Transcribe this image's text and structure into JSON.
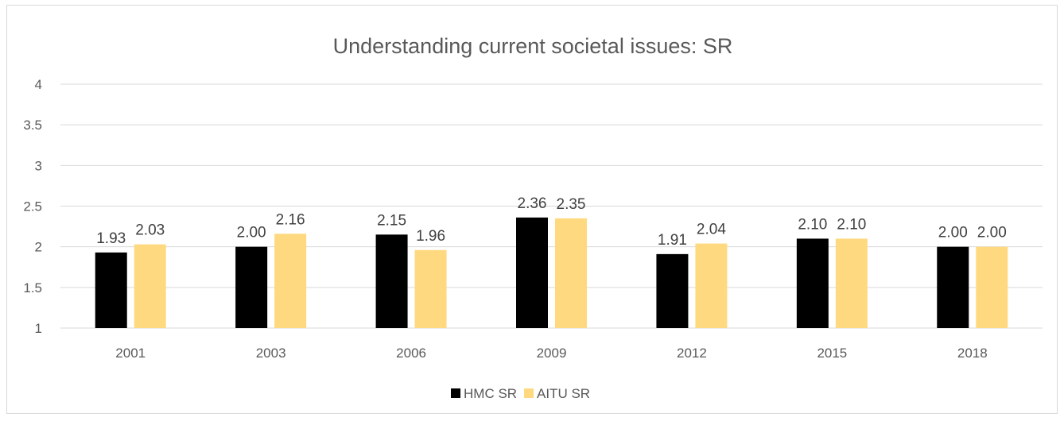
{
  "chart_data": {
    "type": "bar",
    "title": "Understanding current societal issues: SR",
    "xlabel": "",
    "ylabel": "",
    "categories": [
      "2001",
      "2003",
      "2006",
      "2009",
      "2012",
      "2015",
      "2018"
    ],
    "series": [
      {
        "name": "HMC SR",
        "color": "#000000",
        "values": [
          1.93,
          2.0,
          2.15,
          2.36,
          1.91,
          2.1,
          2.0
        ],
        "labels": [
          "1.93",
          "2.00",
          "2.15",
          "2.36",
          "1.91",
          "2.10",
          "2.00"
        ]
      },
      {
        "name": "AITU SR",
        "color": "#ffd97f",
        "values": [
          2.03,
          2.16,
          1.96,
          2.35,
          2.04,
          2.1,
          2.0
        ],
        "labels": [
          "2.03",
          "2.16",
          "1.96",
          "2.35",
          "2.04",
          "2.10",
          "2.00"
        ]
      }
    ],
    "ylim": [
      1,
      4
    ],
    "yticks": [
      "1",
      "1.5",
      "2",
      "2.5",
      "3",
      "3.5",
      "4"
    ],
    "grid": true,
    "legend_position": "bottom"
  }
}
